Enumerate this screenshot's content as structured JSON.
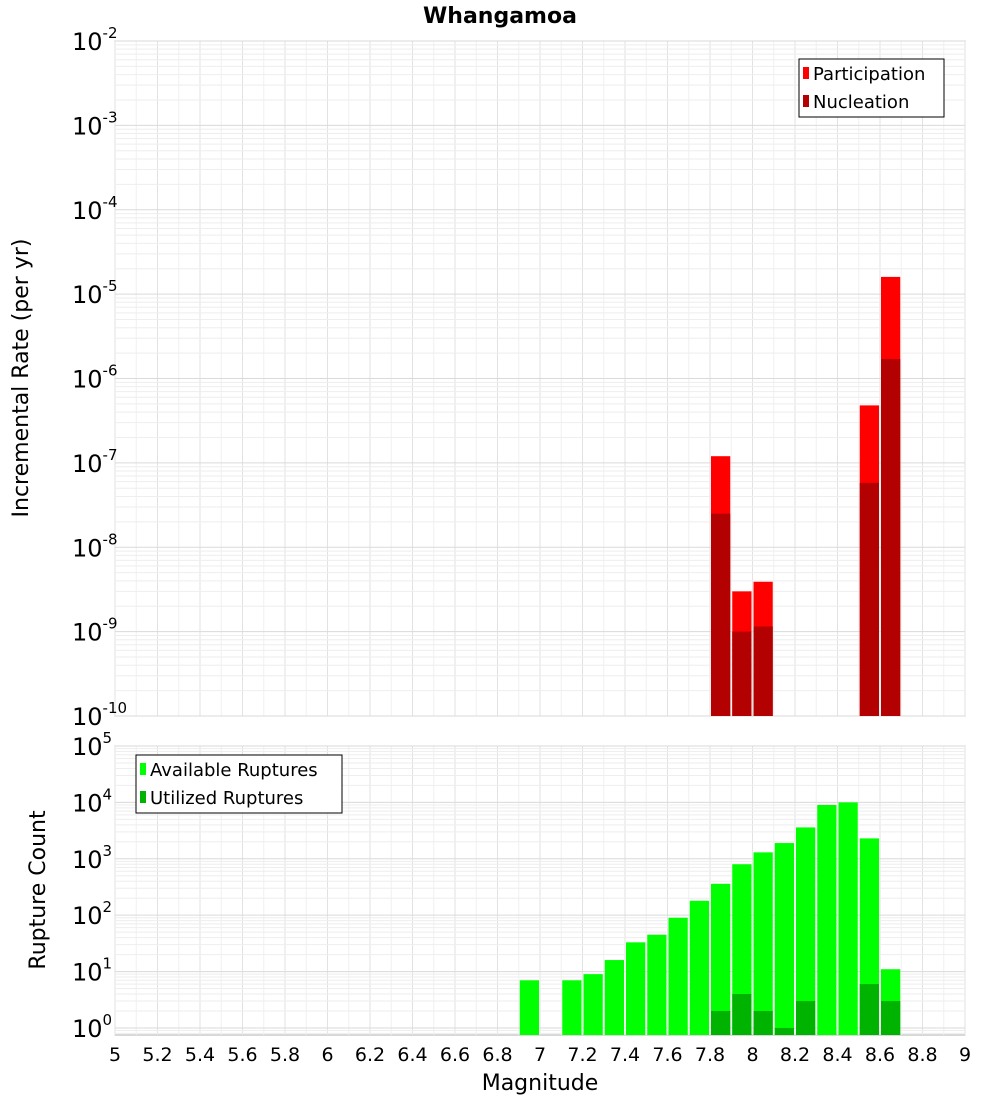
{
  "chart_data": [
    {
      "type": "bar",
      "title": "Whangamoa",
      "xlabel": "",
      "ylabel": "Incremental Rate (per yr)",
      "yscale": "log",
      "ylim": [
        1e-10,
        0.01
      ],
      "xlim": [
        5,
        9
      ],
      "y_ticks": [
        {
          "base": "10",
          "exp": "-10"
        },
        {
          "base": "10",
          "exp": "-9"
        },
        {
          "base": "10",
          "exp": "-8"
        },
        {
          "base": "10",
          "exp": "-7"
        },
        {
          "base": "10",
          "exp": "-6"
        },
        {
          "base": "10",
          "exp": "-5"
        },
        {
          "base": "10",
          "exp": "-4"
        },
        {
          "base": "10",
          "exp": "-3"
        },
        {
          "base": "10",
          "exp": "-2"
        }
      ],
      "grid": true,
      "legend_position": "top-right",
      "series": [
        {
          "name": "Participation",
          "color": "#ff0000",
          "points": [
            {
              "x": 7.85,
              "y": 1.2e-07
            },
            {
              "x": 7.95,
              "y": 3e-09
            },
            {
              "x": 8.05,
              "y": 3.9e-09
            },
            {
              "x": 8.55,
              "y": 4.8e-07
            },
            {
              "x": 8.65,
              "y": 1.6e-05
            }
          ]
        },
        {
          "name": "Nucleation",
          "color": "#b30000",
          "points": [
            {
              "x": 7.85,
              "y": 2.5e-08
            },
            {
              "x": 7.95,
              "y": 1e-09
            },
            {
              "x": 8.05,
              "y": 1.15e-09
            },
            {
              "x": 8.55,
              "y": 5.8e-08
            },
            {
              "x": 8.65,
              "y": 1.7e-06
            }
          ]
        }
      ]
    },
    {
      "type": "bar",
      "title": "",
      "xlabel": "Magnitude",
      "ylabel": "Rupture Count",
      "yscale": "log",
      "ylim": [
        0.75,
        100000
      ],
      "xlim": [
        5,
        9
      ],
      "x_ticks": [
        "5",
        "5.2",
        "5.4",
        "5.6",
        "5.8",
        "6",
        "6.2",
        "6.4",
        "6.6",
        "6.8",
        "7",
        "7.2",
        "7.4",
        "7.6",
        "7.8",
        "8",
        "8.2",
        "8.4",
        "8.6",
        "8.8",
        "9"
      ],
      "y_ticks": [
        {
          "base": "10",
          "exp": "0"
        },
        {
          "base": "10",
          "exp": "1"
        },
        {
          "base": "10",
          "exp": "2"
        },
        {
          "base": "10",
          "exp": "3"
        },
        {
          "base": "10",
          "exp": "4"
        },
        {
          "base": "10",
          "exp": "5"
        }
      ],
      "grid": true,
      "legend_position": "top-left",
      "series": [
        {
          "name": "Available Ruptures",
          "color": "#00ff00",
          "points": [
            {
              "x": 6.95,
              "y": 7
            },
            {
              "x": 7.15,
              "y": 7
            },
            {
              "x": 7.25,
              "y": 9
            },
            {
              "x": 7.35,
              "y": 16
            },
            {
              "x": 7.45,
              "y": 33
            },
            {
              "x": 7.55,
              "y": 45
            },
            {
              "x": 7.65,
              "y": 90
            },
            {
              "x": 7.75,
              "y": 180
            },
            {
              "x": 7.85,
              "y": 360
            },
            {
              "x": 7.95,
              "y": 800
            },
            {
              "x": 8.05,
              "y": 1300
            },
            {
              "x": 8.15,
              "y": 1900
            },
            {
              "x": 8.25,
              "y": 3600
            },
            {
              "x": 8.35,
              "y": 9000
            },
            {
              "x": 8.45,
              "y": 10000
            },
            {
              "x": 8.55,
              "y": 2300
            },
            {
              "x": 8.65,
              "y": 11
            }
          ]
        },
        {
          "name": "Utilized Ruptures",
          "color": "#00b300",
          "points": [
            {
              "x": 7.85,
              "y": 2
            },
            {
              "x": 7.95,
              "y": 4
            },
            {
              "x": 8.05,
              "y": 2
            },
            {
              "x": 8.15,
              "y": 1
            },
            {
              "x": 8.25,
              "y": 3
            },
            {
              "x": 8.55,
              "y": 6
            },
            {
              "x": 8.65,
              "y": 3
            }
          ]
        }
      ]
    }
  ]
}
